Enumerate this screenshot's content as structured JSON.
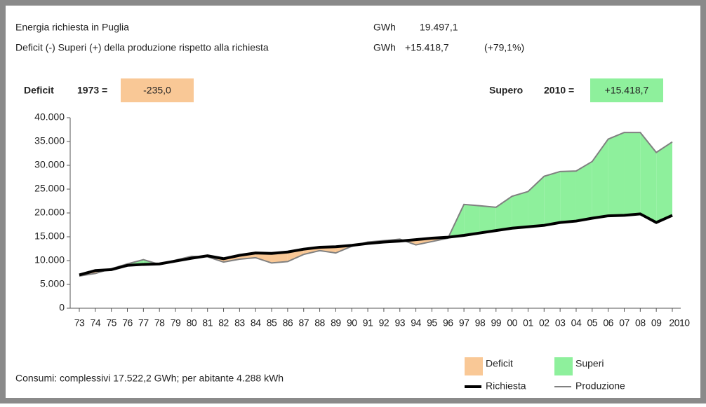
{
  "chart_data": {
    "type": "area-difference",
    "info_rows": [
      {
        "label": "Energia richiesta in Puglia",
        "unit": "GWh",
        "value": "19.497,1"
      },
      {
        "label": "Deficit (-) Superi (+) della produzione rispetto alla richiesta",
        "unit": "GWh",
        "value": "+15.418,7",
        "extra": "(+79,1%)"
      }
    ],
    "deficit_box": {
      "label": "Deficit",
      "year": "1973 =",
      "value": "-235,0"
    },
    "surplus_box": {
      "label": "Supero",
      "year": "2010 =",
      "value": "+15.418,7"
    },
    "footer": "Consumi: complessivi 17.522,2 GWh; per abitante 4.288 kWh",
    "categories": [
      "73",
      "74",
      "75",
      "76",
      "77",
      "78",
      "79",
      "80",
      "81",
      "82",
      "83",
      "84",
      "85",
      "86",
      "87",
      "88",
      "89",
      "90",
      "91",
      "92",
      "93",
      "94",
      "95",
      "96",
      "97",
      "98",
      "99",
      "00",
      "01",
      "02",
      "03",
      "04",
      "05",
      "06",
      "07",
      "08",
      "09",
      "2010"
    ],
    "series": [
      {
        "name": "Richiesta",
        "color": "#000000",
        "values": [
          7000,
          7900,
          8100,
          9000,
          9200,
          9300,
          9900,
          10500,
          11000,
          10400,
          11100,
          11600,
          11500,
          11800,
          12400,
          12800,
          12900,
          13200,
          13600,
          13900,
          14100,
          14400,
          14700,
          14900,
          15300,
          15800,
          16300,
          16800,
          17100,
          17400,
          18000,
          18300,
          18900,
          19400,
          19500,
          19800,
          18000,
          19497.1
        ]
      },
      {
        "name": "Produzione",
        "color": "#808080",
        "values": [
          6765,
          7300,
          8300,
          9300,
          10200,
          9200,
          10100,
          10900,
          10800,
          9700,
          10300,
          10600,
          9500,
          9800,
          11300,
          12100,
          11600,
          13000,
          13900,
          14200,
          14500,
          13300,
          14000,
          14700,
          21800,
          21500,
          21200,
          23500,
          24500,
          27700,
          28700,
          28800,
          30800,
          35500,
          36900,
          36900,
          32700,
          34915.8
        ]
      }
    ],
    "areas": [
      {
        "name": "Deficit",
        "color": "#f9c896"
      },
      {
        "name": "Superi",
        "color": "#8ef09c"
      }
    ],
    "ylim": [
      0,
      40000
    ],
    "yticks": [
      0,
      {
        "value": 5000,
        "label": "5.000"
      },
      {
        "value": 10000,
        "label": "10.000"
      },
      {
        "value": 15000,
        "label": "15.000"
      },
      {
        "value": 20000,
        "label": "20.000"
      },
      {
        "value": 25000,
        "label": "25.000"
      },
      {
        "value": 30000,
        "label": "30.000"
      },
      {
        "value": 35000,
        "label": "35.000"
      },
      {
        "value": 40000,
        "label": "40.000"
      }
    ]
  }
}
